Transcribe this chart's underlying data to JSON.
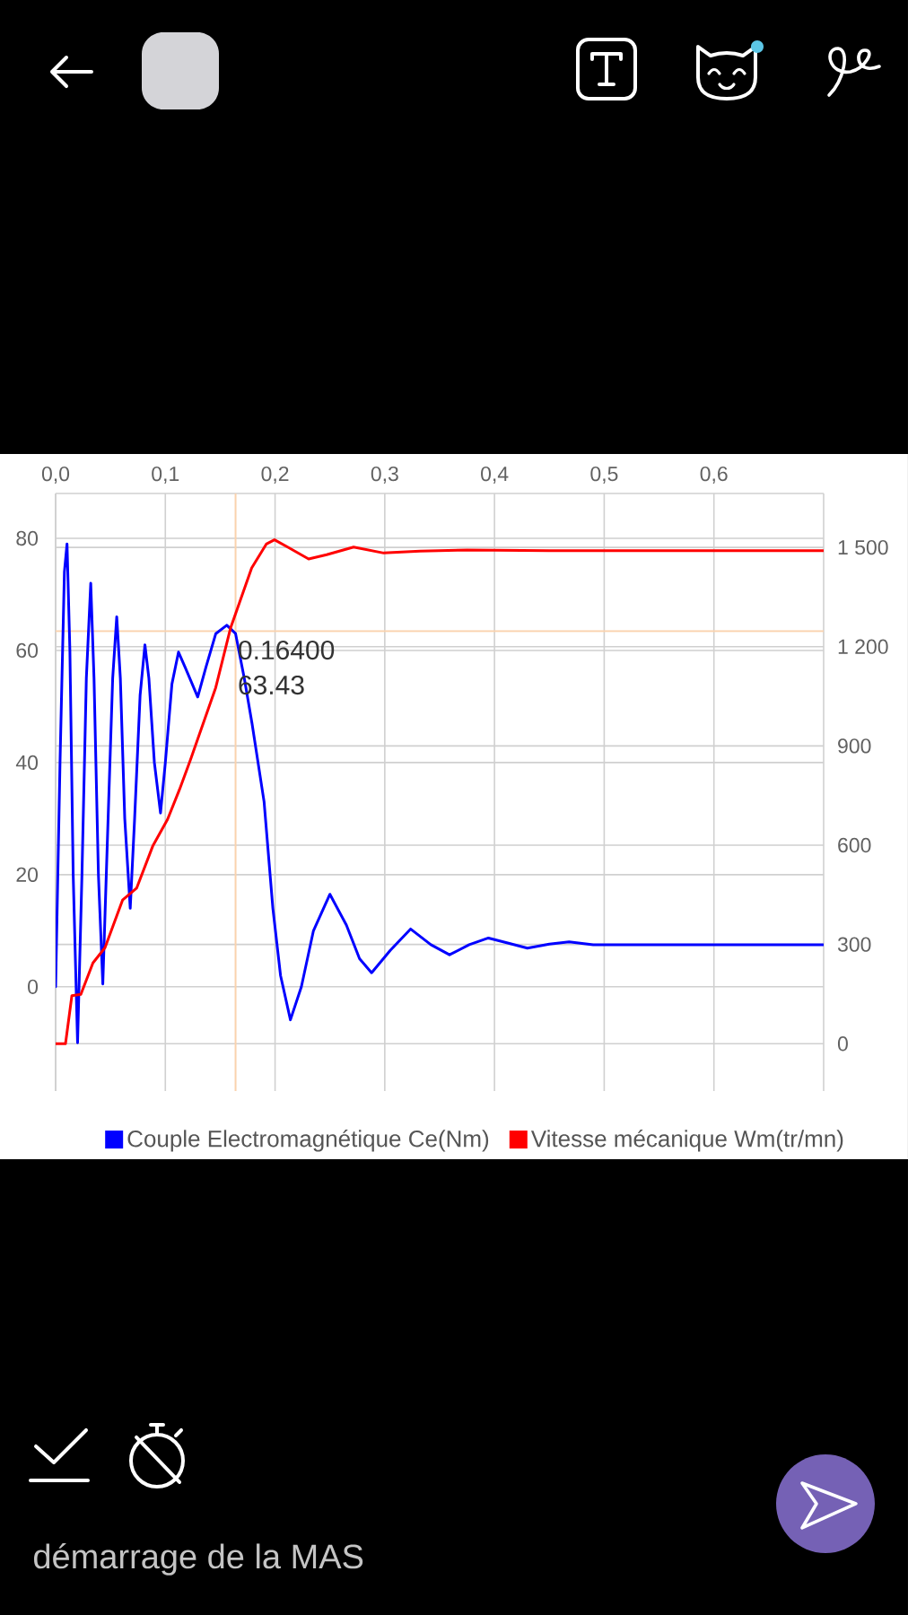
{
  "chart_data": {
    "type": "line",
    "xlim": [
      0,
      0.7
    ],
    "xticks": [
      {
        "value": 0,
        "label": "0,0"
      },
      {
        "value": 0.1,
        "label": "0,1"
      },
      {
        "value": 0.2,
        "label": "0,2"
      },
      {
        "value": 0.3,
        "label": "0,3"
      },
      {
        "value": 0.4,
        "label": "0,4"
      },
      {
        "value": 0.5,
        "label": "0,5"
      },
      {
        "value": 0.6,
        "label": "0,6"
      }
    ],
    "ylim": [
      -18.6,
      88
    ],
    "yticks": [
      0,
      20,
      40,
      60,
      80
    ],
    "y2lim": [
      -143,
      1663
    ],
    "y2ticks": [
      0,
      300,
      600,
      900,
      {
        "value": 1200,
        "label": "1 200"
      },
      {
        "value": 1500,
        "label": "1 500"
      }
    ],
    "grid": true,
    "legend": "bottom",
    "series": [
      {
        "name": "Couple Electromagnétique Ce(Nm)",
        "color": "#0000ff",
        "x": [
          0,
          0.004,
          0.008,
          0.0104,
          0.013,
          0.016,
          0.02,
          0.024,
          0.028,
          0.032,
          0.035,
          0.039,
          0.043,
          0.047,
          0.052,
          0.0557,
          0.059,
          0.063,
          0.068,
          0.072,
          0.077,
          0.0814,
          0.085,
          0.09,
          0.0956,
          0.1,
          0.106,
          0.112,
          0.118,
          0.1295,
          0.137,
          0.146,
          0.156,
          0.164,
          0.172,
          0.179,
          0.19,
          0.198,
          0.205,
          0.214,
          0.224,
          0.235,
          0.25,
          0.265,
          0.277,
          0.288,
          0.305,
          0.3235,
          0.342,
          0.359,
          0.377,
          0.3945,
          0.412,
          0.43,
          0.45,
          0.468,
          0.49,
          0.55,
          0.6,
          0.65,
          0.7
        ],
        "values": [
          0,
          40,
          74,
          79,
          60,
          20,
          -10,
          20,
          55,
          72,
          55,
          20,
          0.5,
          25,
          55,
          66,
          55,
          30,
          14,
          30,
          52,
          61,
          55,
          40,
          31,
          40,
          54,
          59.7,
          57,
          51.7,
          57,
          63,
          64.5,
          63,
          55,
          47,
          33,
          14,
          2,
          -5.9,
          0,
          10,
          16.5,
          11,
          5,
          2.5,
          6.5,
          10.3,
          7.5,
          5.7,
          7.5,
          8.7,
          7.8,
          6.9,
          7.6,
          8,
          7.5,
          7.5,
          7.5,
          7.5,
          7.5
        ]
      },
      {
        "name": "Vitesse mécanique Wm(tr/mn)",
        "color": "#ff0000",
        "axis": "y2",
        "x": [
          0,
          0.009,
          0.0148,
          0.023,
          0.034,
          0.045,
          0.061,
          0.0738,
          0.0885,
          0.102,
          0.113,
          0.123,
          0.1459,
          0.1595,
          0.1787,
          0.192,
          0.1995,
          0.2115,
          0.2306,
          0.247,
          0.2716,
          0.299,
          0.332,
          0.375,
          0.45,
          0.55,
          0.7
        ],
        "values": [
          0,
          0,
          145,
          149,
          244,
          290,
          434,
          470,
          597,
          678,
          769,
          859,
          1076,
          1257,
          1438,
          1510,
          1523,
          1501,
          1465,
          1478,
          1501,
          1483,
          1489,
          1492,
          1490,
          1490,
          1490
        ]
      }
    ],
    "ref_lines": [
      {
        "axis": "x",
        "value": 0.164,
        "color": "#fad2ad"
      },
      {
        "axis": "y",
        "value": 63.43,
        "color": "#fad2ad"
      }
    ],
    "annotations": [
      {
        "text": "0.16400",
        "x": 0.164,
        "y": 63.43
      },
      {
        "text": "63.43",
        "x": 0.164,
        "y": 63.43
      },
      "démarrage de la MAS"
    ]
  }
}
